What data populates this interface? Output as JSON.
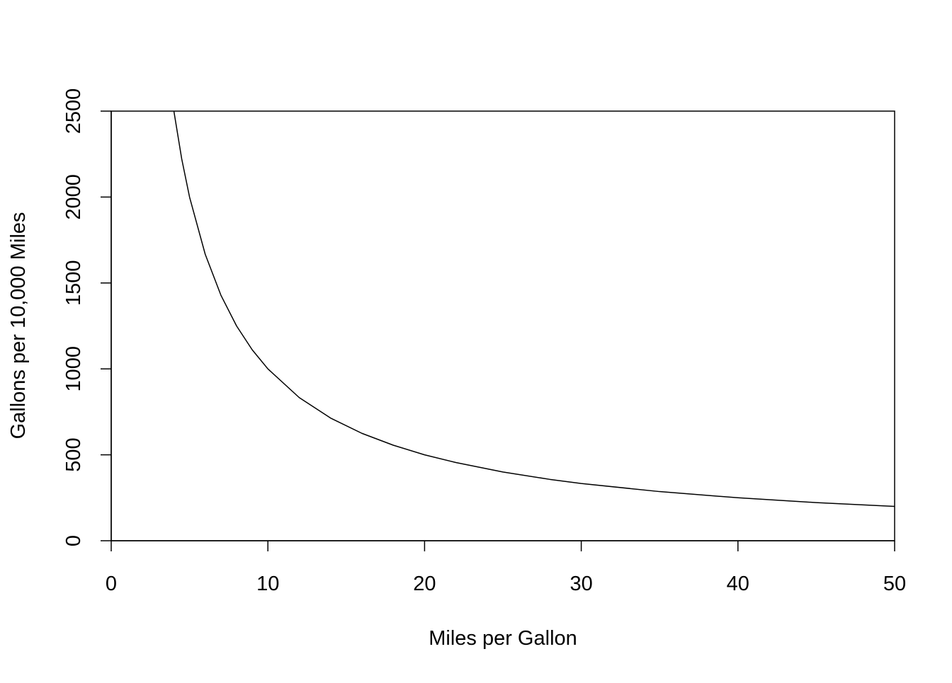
{
  "chart_data": {
    "type": "line",
    "title": "",
    "xlabel": "Miles per Gallon",
    "ylabel": "Gallons per 10,000 Miles",
    "xlim": [
      0,
      50
    ],
    "ylim": [
      0,
      2500
    ],
    "x_ticks": [
      "0",
      "10",
      "20",
      "30",
      "40",
      "50"
    ],
    "y_ticks": [
      "0",
      "500",
      "1000",
      "1500",
      "2000",
      "2500"
    ],
    "grid": false,
    "legend": "none",
    "line_color": "#000000",
    "series": [
      {
        "x": [
          4,
          4.5,
          5,
          6,
          7,
          8,
          9,
          10,
          12,
          14,
          16,
          18,
          20,
          22,
          25,
          28,
          30,
          35,
          40,
          45,
          50
        ],
        "y": [
          2500,
          2222,
          2000,
          1667,
          1429,
          1250,
          1111,
          1000,
          833,
          714,
          625,
          556,
          500,
          455,
          400,
          357,
          333,
          286,
          250,
          222,
          200
        ]
      }
    ]
  }
}
